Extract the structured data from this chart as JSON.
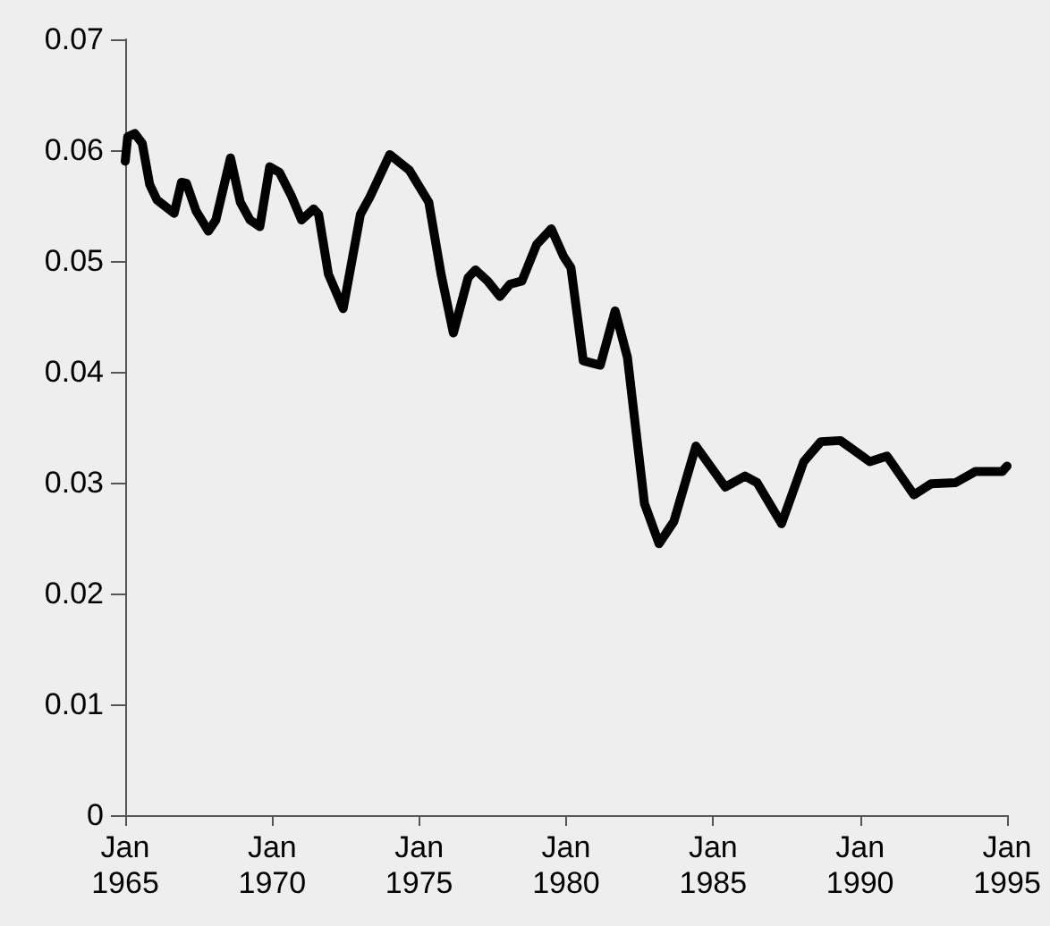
{
  "chart_data": {
    "type": "line",
    "x": [
      "1965-01",
      "1965-02",
      "1965-05",
      "1965-08",
      "1965-11",
      "1966-02",
      "1966-05",
      "1966-09",
      "1966-12",
      "1967-02",
      "1967-06",
      "1967-11",
      "1968-02",
      "1968-08",
      "1968-12",
      "1969-04",
      "1969-08",
      "1969-12",
      "1970-04",
      "1970-09",
      "1971-01",
      "1971-06",
      "1971-08",
      "1971-12",
      "1972-06",
      "1973-01",
      "1973-05",
      "1974-01",
      "1974-09",
      "1975-05",
      "1975-10",
      "1976-03",
      "1976-09",
      "1976-12",
      "1977-05",
      "1977-10",
      "1978-02",
      "1978-07",
      "1979-01",
      "1979-07",
      "1979-12",
      "1980-03",
      "1980-08",
      "1981-03",
      "1981-09",
      "1982-02",
      "1982-09",
      "1983-03",
      "1983-09",
      "1984-06",
      "1985-06",
      "1986-02",
      "1986-07",
      "1987-05",
      "1988-02",
      "1988-09",
      "1989-05",
      "1990-05",
      "1990-12",
      "1991-11",
      "1992-06",
      "1993-04",
      "1993-12",
      "1994-11",
      "1995-01"
    ],
    "series": [
      {
        "color": "#000000",
        "values": [
          0.059,
          0.0612,
          0.0615,
          0.0606,
          0.0569,
          0.0555,
          0.055,
          0.0543,
          0.0571,
          0.057,
          0.0545,
          0.0527,
          0.0537,
          0.0593,
          0.0553,
          0.0537,
          0.0531,
          0.0585,
          0.058,
          0.0558,
          0.0537,
          0.0547,
          0.0542,
          0.0488,
          0.0457,
          0.0542,
          0.0558,
          0.0596,
          0.0582,
          0.0553,
          0.0488,
          0.0435,
          0.0485,
          0.0492,
          0.0482,
          0.0468,
          0.0479,
          0.0482,
          0.0515,
          0.0529,
          0.0504,
          0.0494,
          0.041,
          0.0406,
          0.0455,
          0.0413,
          0.0281,
          0.0245,
          0.0265,
          0.0333,
          0.0296,
          0.0306,
          0.03,
          0.0263,
          0.0319,
          0.0337,
          0.0338,
          0.0319,
          0.0324,
          0.0289,
          0.0299,
          0.03,
          0.031,
          0.031,
          0.0315
        ]
      }
    ],
    "xlim": [
      "1965-01",
      "1995-01"
    ],
    "xticks": [
      {
        "value": "1965-01",
        "label": "Jan\n1965"
      },
      {
        "value": "1970-01",
        "label": "Jan\n1970"
      },
      {
        "value": "1975-01",
        "label": "Jan\n1975"
      },
      {
        "value": "1980-01",
        "label": "Jan\n1980"
      },
      {
        "value": "1985-01",
        "label": "Jan\n1985"
      },
      {
        "value": "1990-01",
        "label": "Jan\n1990"
      },
      {
        "value": "1995-01",
        "label": "Jan\n1995"
      }
    ],
    "ylim": [
      0,
      0.07
    ],
    "yticks": [
      0,
      0.01,
      0.02,
      0.03,
      0.04,
      0.05,
      0.06,
      0.07
    ],
    "grid": false,
    "marker": "none",
    "line_style": "solid"
  }
}
